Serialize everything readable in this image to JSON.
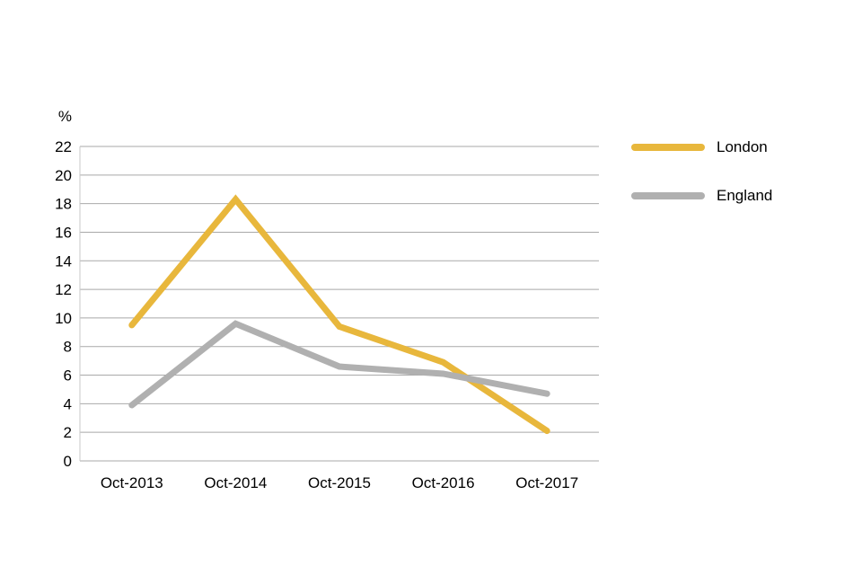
{
  "chart_data": {
    "type": "line",
    "title": "",
    "ylabel": "%",
    "xlabel": "",
    "categories": [
      "Oct-2013",
      "Oct-2014",
      "Oct-2015",
      "Oct-2016",
      "Oct-2017"
    ],
    "series": [
      {
        "name": "London",
        "color": "#E8B73C",
        "values": [
          9.5,
          18.3,
          9.4,
          6.9,
          2.1
        ]
      },
      {
        "name": "England",
        "color": "#B0B0B0",
        "values": [
          3.9,
          9.6,
          6.6,
          6.1,
          4.7
        ]
      }
    ],
    "ylim": [
      0,
      22
    ],
    "yticks": [
      0,
      2,
      4,
      6,
      8,
      10,
      12,
      14,
      16,
      18,
      20,
      22
    ],
    "grid": true,
    "legend_position": "right",
    "line_width": 7
  },
  "colors": {
    "background": "#ffffff",
    "gridline": "#A9A9A9",
    "left_axis": "#C9C9C9",
    "text": "#000000"
  }
}
